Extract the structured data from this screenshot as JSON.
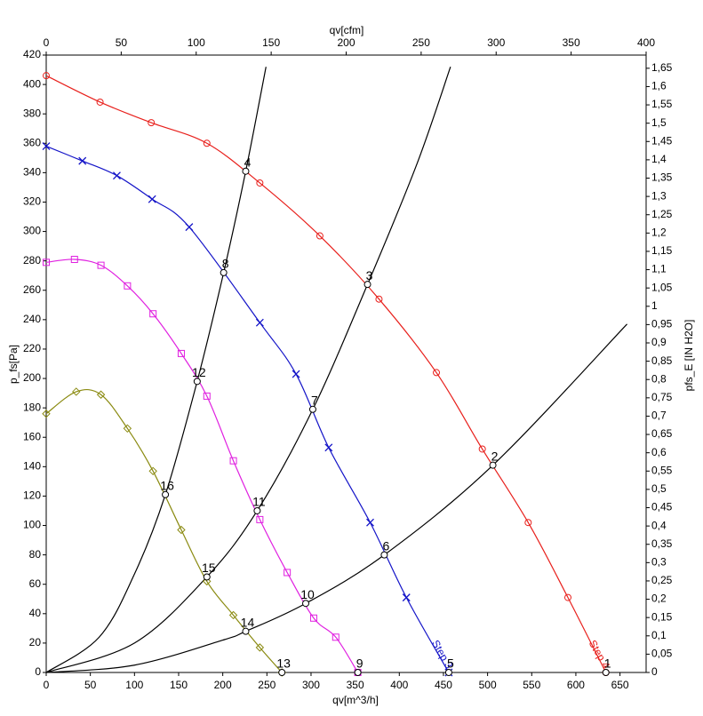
{
  "chart_data": {
    "type": "line",
    "xlabel": "qv[m^3/h]",
    "x2label": "qv[cfm]",
    "ylabel": "p_fs[Pa]",
    "y2label": "pfs_E [IN H2O]",
    "xlim": [
      0,
      679.6
    ],
    "xticks": [
      0,
      50,
      100,
      150,
      200,
      250,
      300,
      350,
      400,
      450,
      500,
      550,
      600,
      650
    ],
    "x2lim": [
      0,
      400
    ],
    "x2ticks": [
      0,
      50,
      100,
      150,
      200,
      250,
      300,
      350,
      400
    ],
    "ylim": [
      0,
      420
    ],
    "yticks": [
      0,
      20,
      40,
      60,
      80,
      100,
      120,
      140,
      160,
      180,
      200,
      220,
      240,
      260,
      280,
      300,
      320,
      340,
      360,
      380,
      400,
      420
    ],
    "y2lim": [
      0,
      1.686
    ],
    "y2ticks": [
      0,
      {
        "value": 0.05,
        "label": "0,05"
      },
      {
        "value": 0.1,
        "label": "0,1"
      },
      {
        "value": 0.15,
        "label": "0,15"
      },
      {
        "value": 0.2,
        "label": "0,2"
      },
      {
        "value": 0.25,
        "label": "0,25"
      },
      {
        "value": 0.3,
        "label": "0,3"
      },
      {
        "value": 0.35,
        "label": "0,35"
      },
      {
        "value": 0.4,
        "label": "0,4"
      },
      {
        "value": 0.45,
        "label": "0,45"
      },
      {
        "value": 0.5,
        "label": "0,5"
      },
      {
        "value": 0.55,
        "label": "0,55"
      },
      {
        "value": 0.6,
        "label": "0,6"
      },
      {
        "value": 0.65,
        "label": "0,65"
      },
      {
        "value": 0.7,
        "label": "0,7"
      },
      {
        "value": 0.75,
        "label": "0,75"
      },
      {
        "value": 0.8,
        "label": "0,8"
      },
      {
        "value": 0.85,
        "label": "0,85"
      },
      {
        "value": 0.9,
        "label": "0,9"
      },
      {
        "value": 0.95,
        "label": "0,95"
      },
      1,
      {
        "value": 1.05,
        "label": "1,05"
      },
      {
        "value": 1.1,
        "label": "1,1"
      },
      {
        "value": 1.15,
        "label": "1,15"
      },
      {
        "value": 1.2,
        "label": "1,2"
      },
      {
        "value": 1.25,
        "label": "1,25"
      },
      {
        "value": 1.3,
        "label": "1,3"
      },
      {
        "value": 1.35,
        "label": "1,35"
      },
      {
        "value": 1.4,
        "label": "1,4"
      },
      {
        "value": 1.45,
        "label": "1,45"
      },
      {
        "value": 1.5,
        "label": "1,5"
      },
      {
        "value": 1.55,
        "label": "1,55"
      },
      {
        "value": 1.6,
        "label": "1,6"
      },
      {
        "value": 1.65,
        "label": "1,65"
      }
    ],
    "series": [
      {
        "name": "Step 4",
        "color": "#e8201c",
        "marker": "circle",
        "x": [
          0,
          61,
          119,
          182,
          242,
          310,
          377,
          442,
          494,
          546,
          591,
          634
        ],
        "values": [
          406,
          388,
          374,
          360,
          333,
          297,
          254,
          204,
          152,
          102,
          51,
          0
        ]
      },
      {
        "name": "Step 3",
        "color": "#1414c8",
        "marker": "cross",
        "x": [
          0,
          41,
          80,
          120,
          162,
          242,
          283,
          320,
          367,
          408,
          456
        ],
        "values": [
          358,
          348,
          338,
          322,
          303,
          238,
          203,
          153,
          102,
          51,
          0
        ]
      },
      {
        "color": "#e020e0",
        "marker": "square",
        "x": [
          0,
          32,
          62,
          92,
          121,
          153,
          182,
          212,
          242,
          273,
          303,
          328,
          353
        ],
        "values": [
          279,
          281,
          277,
          263,
          244,
          217,
          188,
          144,
          104,
          68,
          37,
          24,
          0
        ]
      },
      {
        "color": "#8a8a10",
        "marker": "diamond",
        "x": [
          0,
          34,
          62,
          92,
          121,
          153,
          182,
          212,
          242,
          267
        ],
        "values": [
          176,
          191,
          189,
          166,
          137,
          97,
          62,
          39,
          17,
          0
        ]
      }
    ],
    "system_curves": [
      {
        "color": "#000000",
        "x": [
          0,
          60,
          100,
          135,
          171,
          201,
          226,
          249
        ],
        "values": [
          0,
          24,
          67,
          121,
          198,
          272,
          341,
          412
        ]
      },
      {
        "color": "#000000",
        "x": [
          0,
          100,
          182,
          239,
          302,
          364,
          420,
          458
        ],
        "values": [
          0,
          20,
          65,
          110,
          179,
          264,
          346,
          412
        ]
      },
      {
        "color": "#000000",
        "x": [
          0,
          100,
          200,
          226,
          294,
          383,
          506,
          658
        ],
        "values": [
          0,
          5,
          22,
          28,
          47,
          80,
          141,
          237
        ]
      }
    ],
    "operating_points": {
      "labels": [
        "1",
        "2",
        "3",
        "4",
        "5",
        "6",
        "7",
        "8",
        "9",
        "10",
        "11",
        "12",
        "13",
        "14",
        "15",
        "16"
      ],
      "x": [
        634,
        506,
        364,
        226,
        456,
        383,
        302,
        201,
        353,
        294,
        239,
        171,
        267,
        226,
        182,
        135
      ],
      "values": [
        0,
        141,
        264,
        341,
        0,
        80,
        179,
        272,
        0,
        47,
        110,
        198,
        0,
        28,
        65,
        121
      ]
    }
  }
}
